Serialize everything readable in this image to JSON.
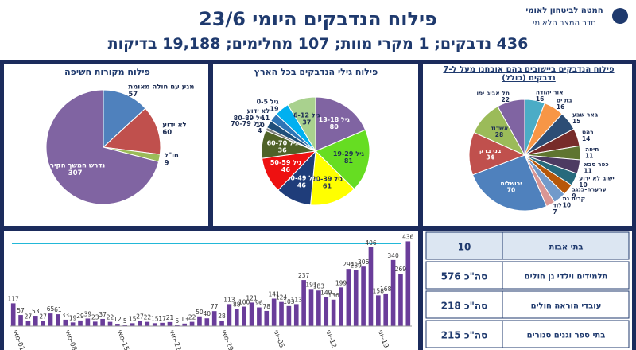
{
  "header": {
    "org": "המטה לביטחון לאומי",
    "unit": "חדר המצב הלאומי",
    "title": "פילוח הנדבקים היומי 23/6",
    "subtitle": "436 נדבקים; 1 מקרי מוות; 107 מחלימים; 19,188 בדיקות"
  },
  "chart_data": [
    {
      "type": "pie",
      "title": "פילוח מקורות חשיפה",
      "categories": [
        "מגע עם חולה מאומת",
        "לא ידוע",
        "חו\"ל",
        "נדרש המשך חקירה"
      ],
      "values": [
        57,
        60,
        9,
        307
      ],
      "colors": [
        "#4f81bd",
        "#c0504d",
        "#9bbb59",
        "#8064a2"
      ]
    },
    {
      "type": "pie",
      "title": "פילוח גילי הנדבקים בכל הארץ",
      "categories": [
        "גיל 13-18",
        "גיל 19-29",
        "גיל 30-39",
        "גיל 40-49",
        "גיל 50-59",
        "גיל 60-70",
        "גיל 70-79",
        "גיל 80-89",
        "לא ידוע",
        "גיל 0-5",
        "גיל 6-12"
      ],
      "values": [
        80,
        81,
        61,
        46,
        46,
        36,
        4,
        10,
        11,
        19,
        37
      ],
      "colors": [
        "#8064a2",
        "#66dd22",
        "#ffff00",
        "#1f3d7a",
        "#ee1111",
        "#4f6228",
        "#7f7f7f",
        "#1f4e79",
        "#2e75b6",
        "#00b0f0",
        "#a9d18e"
      ]
    },
    {
      "type": "pie",
      "title": "פילוח הנדבקים ביישובים בהם אובחנו מעל ל-7 נדבקים (כולל)",
      "categories": [
        "אור יהודה",
        "בת ים",
        "באר שבע",
        "רהט",
        "חיפה",
        "כפר סבא",
        "ישוב לא ידוע",
        "ערערה-בנגב",
        "קרית גת",
        "לוד",
        "ירושלים",
        "בני ברק",
        "אשדוד",
        "תל אביב יפו"
      ],
      "values": [
        16,
        16,
        15,
        14,
        11,
        11,
        10,
        9,
        10,
        7,
        70,
        34,
        28,
        22
      ],
      "colors": [
        "#4bacc6",
        "#f79646",
        "#2c4d75",
        "#772c2a",
        "#5f7530",
        "#4d3b62",
        "#276a7c",
        "#b65708",
        "#729aca",
        "#d99694",
        "#4f81bd",
        "#c0504d",
        "#9bbb59",
        "#8064a2"
      ]
    },
    {
      "type": "bar",
      "color": "#6a3d9a",
      "ylim": [
        0,
        450
      ],
      "categories": [
        "01-מאי",
        null,
        null,
        null,
        null,
        null,
        null,
        "08-מאי",
        null,
        null,
        null,
        null,
        null,
        null,
        "15-מאי",
        null,
        null,
        null,
        null,
        null,
        null,
        "22-מאי",
        null,
        null,
        null,
        null,
        null,
        null,
        "29-מאי",
        null,
        null,
        null,
        null,
        null,
        null,
        "05-יוני",
        null,
        null,
        null,
        null,
        null,
        null,
        "12-יוני",
        null,
        null,
        null,
        null,
        null,
        null,
        "19-יוני",
        null,
        null,
        null,
        null
      ],
      "values": [
        117,
        57,
        27,
        53,
        27,
        65,
        61,
        33,
        19,
        29,
        39,
        23,
        37,
        22,
        12,
        5,
        15,
        27,
        22,
        15,
        17,
        21,
        5,
        13,
        22,
        50,
        40,
        77,
        28,
        113,
        88,
        100,
        121,
        96,
        78,
        141,
        124,
        103,
        113,
        237,
        191,
        183,
        149,
        136,
        199,
        294,
        289,
        306,
        406,
        158,
        168,
        340,
        269,
        436
      ]
    }
  ],
  "table": {
    "rows": [
      [
        "בתי אבות",
        "10"
      ],
      [
        "תלמידים וילדי גן חולים",
        "סה\"כ 576"
      ],
      [
        "עובדי הוראה חולים",
        "סה\"כ 218"
      ],
      [
        "בתי ספר וגנים סגורים",
        "סה\"כ 215"
      ]
    ]
  }
}
